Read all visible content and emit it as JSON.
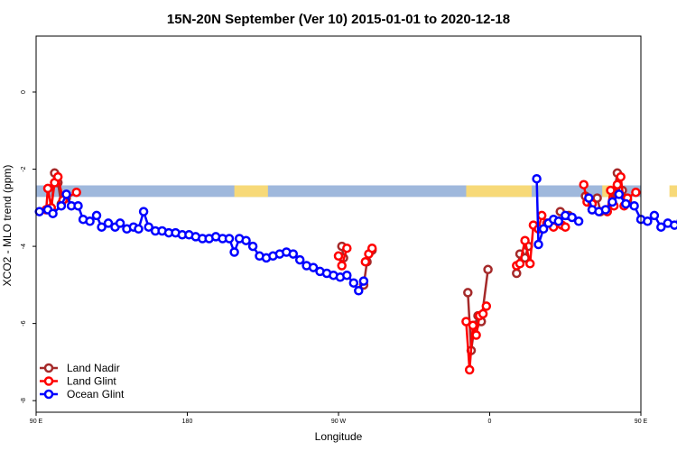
{
  "chart_data": {
    "type": "line",
    "title": "15N-20N September (Ver 10)   2015-01-01 to 2020-12-18",
    "xlabel": "Longitude",
    "ylabel": "XCO2 - MLO trend (ppm)",
    "xlim": [
      90,
      450
    ],
    "ylim": [
      -8.3,
      1.45
    ],
    "x_ticks": [
      {
        "value": 90,
        "label": "90 E"
      },
      {
        "value": 180,
        "label": "180"
      },
      {
        "value": 270,
        "label": "90 W"
      },
      {
        "value": 360,
        "label": "0"
      },
      {
        "value": 450,
        "label": "90 E"
      },
      {
        "value": 540,
        "label": "180"
      }
    ],
    "y_ticks": [
      {
        "value": 0,
        "label": "0"
      },
      {
        "value": -2,
        "label": "-2"
      },
      {
        "value": -4,
        "label": "-4"
      },
      {
        "value": -6,
        "label": "-6"
      },
      {
        "value": -8,
        "label": "-8"
      }
    ],
    "legend": {
      "position": "bottom-left"
    },
    "land_strip": {
      "y_range": [
        -2.42,
        -2.72
      ],
      "ocean_color": "#9fb8dc",
      "land_color": "#f7d978",
      "land_segments": [
        [
          208,
          228
        ],
        [
          346,
          385
        ],
        [
          427,
          433
        ],
        [
          467,
          485
        ]
      ]
    },
    "series": [
      {
        "name": "Land Nadir",
        "color": "#a52a2a",
        "segments": [
          [
            [
              99,
              -3.05
            ],
            [
              101,
              -2.1
            ],
            [
              103,
              -2.35
            ],
            [
              105,
              -2.9
            ],
            [
              108,
              -2.75
            ]
          ],
          [
            [
              272,
              -4.0
            ],
            [
              273,
              -4.3
            ]
          ],
          [
            [
              285,
              -5.0
            ],
            [
              287,
              -4.4
            ],
            [
              290,
              -4.1
            ]
          ],
          [
            [
              347,
              -5.2
            ],
            [
              349,
              -6.7
            ],
            [
              351,
              -6.05
            ],
            [
              353,
              -5.8
            ],
            [
              355,
              -5.95
            ],
            [
              359,
              -4.6
            ]
          ],
          [
            [
              376,
              -4.7
            ],
            [
              378,
              -4.2
            ],
            [
              381,
              -4.3
            ],
            [
              383,
              -4.0
            ]
          ],
          [
            [
              402,
              -3.1
            ],
            [
              407,
              -3.2
            ]
          ],
          [
            [
              417,
              -2.7
            ],
            [
              421,
              -3.05
            ],
            [
              424,
              -2.75
            ],
            [
              426,
              -3.1
            ]
          ],
          [
            [
              433,
              -2.9
            ],
            [
              436,
              -2.1
            ],
            [
              439,
              -2.55
            ],
            [
              442,
              -2.8
            ]
          ]
        ]
      },
      {
        "name": "Land Glint",
        "color": "#ff0000",
        "segments": [
          [
            [
              96,
              -3.05
            ],
            [
              97,
              -2.5
            ],
            [
              99,
              -3.0
            ],
            [
              101,
              -2.35
            ],
            [
              103,
              -2.2
            ],
            [
              106,
              -2.8
            ],
            [
              114,
              -2.6
            ]
          ],
          [
            [
              270,
              -4.25
            ],
            [
              272,
              -4.5
            ],
            [
              275,
              -4.05
            ]
          ],
          [
            [
              286,
              -4.4
            ],
            [
              288,
              -4.2
            ],
            [
              290,
              -4.05
            ]
          ],
          [
            [
              346,
              -5.95
            ],
            [
              348,
              -7.2
            ],
            [
              350,
              -6.05
            ],
            [
              352,
              -6.3
            ],
            [
              354,
              -5.8
            ],
            [
              356,
              -5.75
            ],
            [
              358,
              -5.55
            ]
          ],
          [
            [
              376,
              -4.5
            ],
            [
              378,
              -4.45
            ],
            [
              381,
              -3.85
            ],
            [
              384,
              -4.45
            ],
            [
              386,
              -3.45
            ],
            [
              389,
              -3.55
            ],
            [
              391,
              -3.2
            ],
            [
              394,
              -3.4
            ],
            [
              398,
              -3.5
            ],
            [
              401,
              -3.35
            ],
            [
              403,
              -3.45
            ],
            [
              405,
              -3.5
            ]
          ],
          [
            [
              416,
              -2.4
            ],
            [
              418,
              -2.85
            ],
            [
              421,
              -2.9
            ]
          ],
          [
            [
              430,
              -3.1
            ],
            [
              432,
              -2.55
            ],
            [
              434,
              -2.95
            ],
            [
              436,
              -2.4
            ],
            [
              438,
              -2.2
            ],
            [
              440,
              -2.95
            ],
            [
              442,
              -2.75
            ],
            [
              447,
              -2.6
            ]
          ]
        ]
      },
      {
        "name": "Ocean Glint",
        "color": "#0000ff",
        "segments": [
          [
            [
              92,
              -3.1
            ],
            [
              97,
              -3.05
            ],
            [
              100,
              -3.15
            ],
            [
              105,
              -2.95
            ],
            [
              108,
              -2.65
            ],
            [
              111,
              -2.95
            ],
            [
              115,
              -2.95
            ],
            [
              118,
              -3.3
            ],
            [
              122,
              -3.35
            ],
            [
              126,
              -3.2
            ],
            [
              129,
              -3.5
            ],
            [
              133,
              -3.4
            ],
            [
              137,
              -3.5
            ],
            [
              140,
              -3.4
            ],
            [
              144,
              -3.55
            ],
            [
              148,
              -3.5
            ],
            [
              151,
              -3.55
            ],
            [
              154,
              -3.1
            ],
            [
              157,
              -3.5
            ],
            [
              161,
              -3.6
            ],
            [
              165,
              -3.6
            ],
            [
              169,
              -3.65
            ],
            [
              173,
              -3.65
            ],
            [
              177,
              -3.7
            ],
            [
              181,
              -3.7
            ],
            [
              185,
              -3.75
            ],
            [
              189,
              -3.8
            ],
            [
              193,
              -3.8
            ],
            [
              197,
              -3.75
            ],
            [
              201,
              -3.8
            ],
            [
              205,
              -3.8
            ],
            [
              208,
              -4.15
            ],
            [
              211,
              -3.8
            ],
            [
              215,
              -3.85
            ],
            [
              219,
              -4.0
            ],
            [
              223,
              -4.25
            ],
            [
              227,
              -4.3
            ],
            [
              231,
              -4.25
            ],
            [
              235,
              -4.2
            ],
            [
              239,
              -4.15
            ],
            [
              243,
              -4.2
            ],
            [
              247,
              -4.35
            ],
            [
              251,
              -4.5
            ],
            [
              255,
              -4.55
            ],
            [
              259,
              -4.65
            ],
            [
              263,
              -4.7
            ],
            [
              267,
              -4.75
            ],
            [
              271,
              -4.8
            ],
            [
              275,
              -4.75
            ],
            [
              279,
              -4.95
            ],
            [
              282,
              -5.15
            ],
            [
              285,
              -4.9
            ]
          ],
          [
            [
              388,
              -2.25
            ],
            [
              389,
              -3.95
            ],
            [
              392,
              -3.55
            ],
            [
              395,
              -3.4
            ],
            [
              398,
              -3.3
            ],
            [
              401,
              -3.35
            ],
            [
              405,
              -3.2
            ],
            [
              409,
              -3.25
            ],
            [
              413,
              -3.35
            ]
          ],
          [
            [
              419,
              -2.75
            ],
            [
              421,
              -3.05
            ],
            [
              425,
              -3.1
            ],
            [
              429,
              -3.05
            ],
            [
              433,
              -2.85
            ],
            [
              437,
              -2.65
            ],
            [
              441,
              -2.9
            ],
            [
              446,
              -2.95
            ],
            [
              450,
              -3.3
            ],
            [
              454,
              -3.35
            ],
            [
              458,
              -3.2
            ],
            [
              462,
              -3.5
            ],
            [
              466,
              -3.4
            ],
            [
              470,
              -3.45
            ],
            [
              474,
              -3.35
            ],
            [
              478,
              -3.5
            ],
            [
              482,
              -3.45
            ],
            [
              486,
              -3.6
            ],
            [
              490,
              -3.55
            ],
            [
              494,
              -3.55
            ]
          ]
        ]
      }
    ]
  }
}
